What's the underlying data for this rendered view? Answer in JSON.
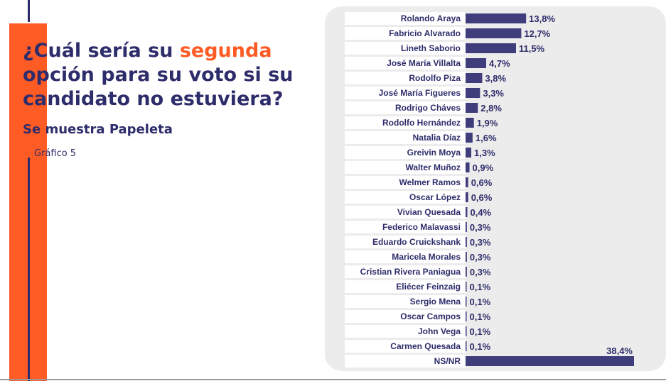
{
  "header": {
    "title_part1": "¿Cuál sería su ",
    "title_highlight": "segunda",
    "title_part2": " opción para su voto si su candidato no estuviera?",
    "subtitle": "Se muestra Papeleta",
    "caption": "Gráfico 5"
  },
  "colors": {
    "accent": "#ff5b24",
    "bar": "#3f3d7c",
    "text": "#2e2d6b",
    "panel": "#ececec"
  },
  "chart_data": {
    "type": "bar",
    "orientation": "horizontal",
    "categories": [
      "Rolando Araya",
      "Fabricio Alvarado",
      "Lineth Saborio",
      "José María Villalta",
      "Rodolfo Piza",
      "José María Figueres",
      "Rodrigo Cháves",
      "Rodolfo Hernández",
      "Natalia Díaz",
      "Greivin Moya",
      "Walter Muñoz",
      "Welmer Ramos",
      "Oscar López",
      "Vivian Quesada",
      "Federico Malavassi",
      "Eduardo Cruickshank",
      "Maricela Morales",
      "Cristian Rivera Paniagua",
      "Eliécer Feinzaig",
      "Sergio Mena",
      "Oscar Campos",
      "John Vega",
      "Carmen Quesada",
      "NS/NR"
    ],
    "values": [
      13.8,
      12.7,
      11.5,
      4.7,
      3.8,
      3.3,
      2.8,
      1.9,
      1.6,
      1.3,
      0.9,
      0.6,
      0.6,
      0.4,
      0.3,
      0.3,
      0.3,
      0.3,
      0.1,
      0.1,
      0.1,
      0.1,
      0.1,
      38.4
    ],
    "value_labels": [
      "13,8%",
      "12,7%",
      "11,5%",
      "4,7%",
      "3,8%",
      "3,3%",
      "2,8%",
      "1,9%",
      "1,6%",
      "1,3%",
      "0,9%",
      "0,6%",
      "0,6%",
      "0,4%",
      "0,3%",
      "0,3%",
      "0,3%",
      "0,3%",
      "0,1%",
      "0,1%",
      "0,1%",
      "0,1%",
      "0,1%",
      "38,4%"
    ],
    "xlim": [
      0,
      38.4
    ],
    "grid": false,
    "legend": "none"
  }
}
